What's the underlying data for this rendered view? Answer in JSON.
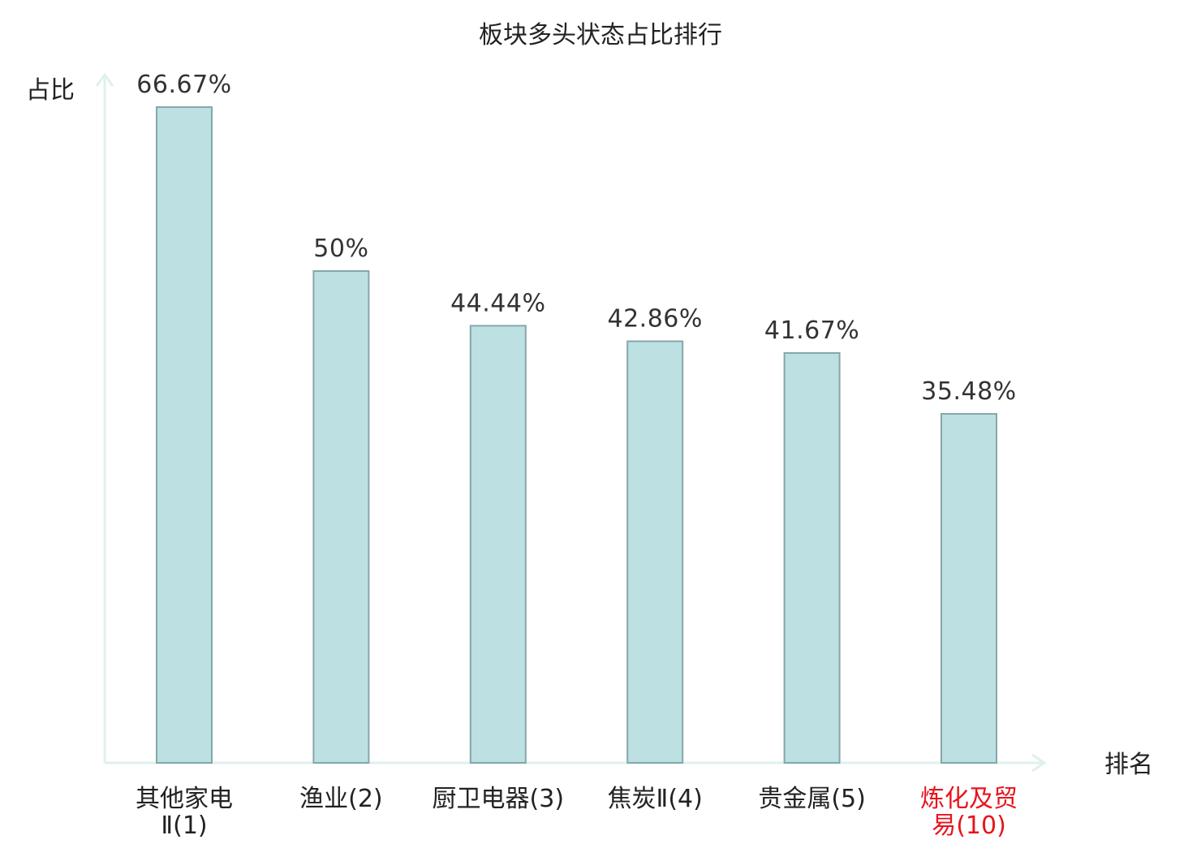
{
  "chart_data": {
    "type": "bar",
    "title": "板块多头状态占比排行",
    "ylabel": "占比",
    "xlabel": "排名",
    "ylim": [
      0,
      70
    ],
    "grid": false,
    "legend": "none",
    "categories": [
      {
        "name_line1": "其他家电",
        "name_line2": "Ⅱ(1)",
        "highlight": false
      },
      {
        "name_line1": "渔业(2)",
        "name_line2": "",
        "highlight": false
      },
      {
        "name_line1": "厨卫电器(3)",
        "name_line2": "",
        "highlight": false
      },
      {
        "name_line1": "焦炭Ⅱ(4)",
        "name_line2": "",
        "highlight": false
      },
      {
        "name_line1": "贵金属(5)",
        "name_line2": "",
        "highlight": false
      },
      {
        "name_line1": "炼化及贸",
        "name_line2": "易(10)",
        "highlight": true
      }
    ],
    "values": [
      66.67,
      50,
      44.44,
      42.86,
      41.67,
      35.48
    ],
    "value_labels": [
      "66.67%",
      "50%",
      "44.44%",
      "42.86%",
      "41.67%",
      "35.48%"
    ],
    "colors": {
      "bar_fill": "#bde0e2",
      "bar_stroke": "#86a7aa",
      "axis": "#dff0ee",
      "highlight_text": "#e8141c",
      "normal_text": "#222222"
    }
  }
}
